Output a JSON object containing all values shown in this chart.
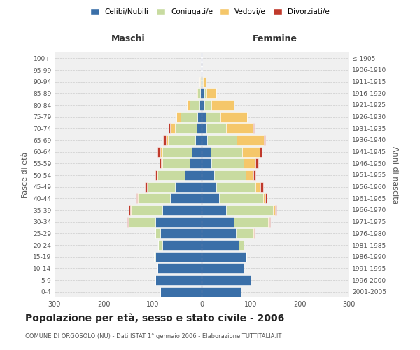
{
  "age_groups": [
    "0-4",
    "5-9",
    "10-14",
    "15-19",
    "20-24",
    "25-29",
    "30-34",
    "35-39",
    "40-44",
    "45-49",
    "50-54",
    "55-59",
    "60-64",
    "65-69",
    "70-74",
    "75-79",
    "80-84",
    "85-89",
    "90-94",
    "95-99",
    "100+"
  ],
  "birth_years": [
    "2001-2005",
    "1996-2000",
    "1991-1995",
    "1986-1990",
    "1981-1985",
    "1976-1980",
    "1971-1975",
    "1966-1970",
    "1961-1965",
    "1956-1960",
    "1951-1955",
    "1946-1950",
    "1941-1945",
    "1936-1940",
    "1931-1935",
    "1926-1930",
    "1921-1925",
    "1916-1920",
    "1911-1915",
    "1906-1910",
    "≤ 1905"
  ],
  "maschi": {
    "celibi": [
      85,
      95,
      90,
      95,
      80,
      85,
      95,
      80,
      65,
      55,
      35,
      25,
      20,
      13,
      10,
      8,
      5,
      3,
      1,
      1,
      1
    ],
    "coniugati": [
      0,
      0,
      0,
      2,
      8,
      10,
      55,
      65,
      65,
      55,
      55,
      55,
      60,
      55,
      45,
      35,
      20,
      5,
      2,
      0,
      0
    ],
    "vedovi": [
      0,
      0,
      0,
      0,
      0,
      0,
      0,
      1,
      1,
      1,
      2,
      3,
      5,
      5,
      10,
      8,
      5,
      2,
      1,
      0,
      0
    ],
    "divorziati": [
      0,
      0,
      0,
      0,
      0,
      0,
      2,
      2,
      2,
      5,
      2,
      3,
      5,
      5,
      2,
      1,
      0,
      0,
      0,
      0,
      0
    ]
  },
  "femmine": {
    "nubili": [
      80,
      100,
      85,
      90,
      75,
      70,
      65,
      50,
      35,
      30,
      25,
      20,
      18,
      12,
      10,
      8,
      5,
      5,
      2,
      1,
      1
    ],
    "coniugate": [
      0,
      0,
      0,
      2,
      10,
      35,
      70,
      95,
      90,
      80,
      65,
      65,
      65,
      60,
      40,
      30,
      15,
      5,
      1,
      0,
      0
    ],
    "vedove": [
      0,
      0,
      0,
      0,
      0,
      2,
      3,
      5,
      5,
      10,
      15,
      25,
      35,
      55,
      55,
      55,
      45,
      20,
      5,
      1,
      0
    ],
    "divorziate": [
      0,
      0,
      0,
      0,
      0,
      1,
      2,
      3,
      3,
      5,
      5,
      5,
      5,
      3,
      2,
      0,
      0,
      0,
      0,
      0,
      0
    ]
  },
  "colors": {
    "celibi_nubili": "#3a6fa8",
    "coniugati": "#c8dba0",
    "vedovi": "#f5c76a",
    "divorziati": "#c0392b"
  },
  "bg_color": "#f0f0f0",
  "xlim": 300,
  "title": "Popolazione per età, sesso e stato civile - 2006",
  "subtitle": "COMUNE DI ORGOSOLO (NU) - Dati ISTAT 1° gennaio 2006 - Elaborazione TUTTITALIA.IT",
  "ylabel_left": "Fasce di età",
  "ylabel_right": "Anni di nascita",
  "xlabel_left": "Maschi",
  "xlabel_right": "Femmine"
}
